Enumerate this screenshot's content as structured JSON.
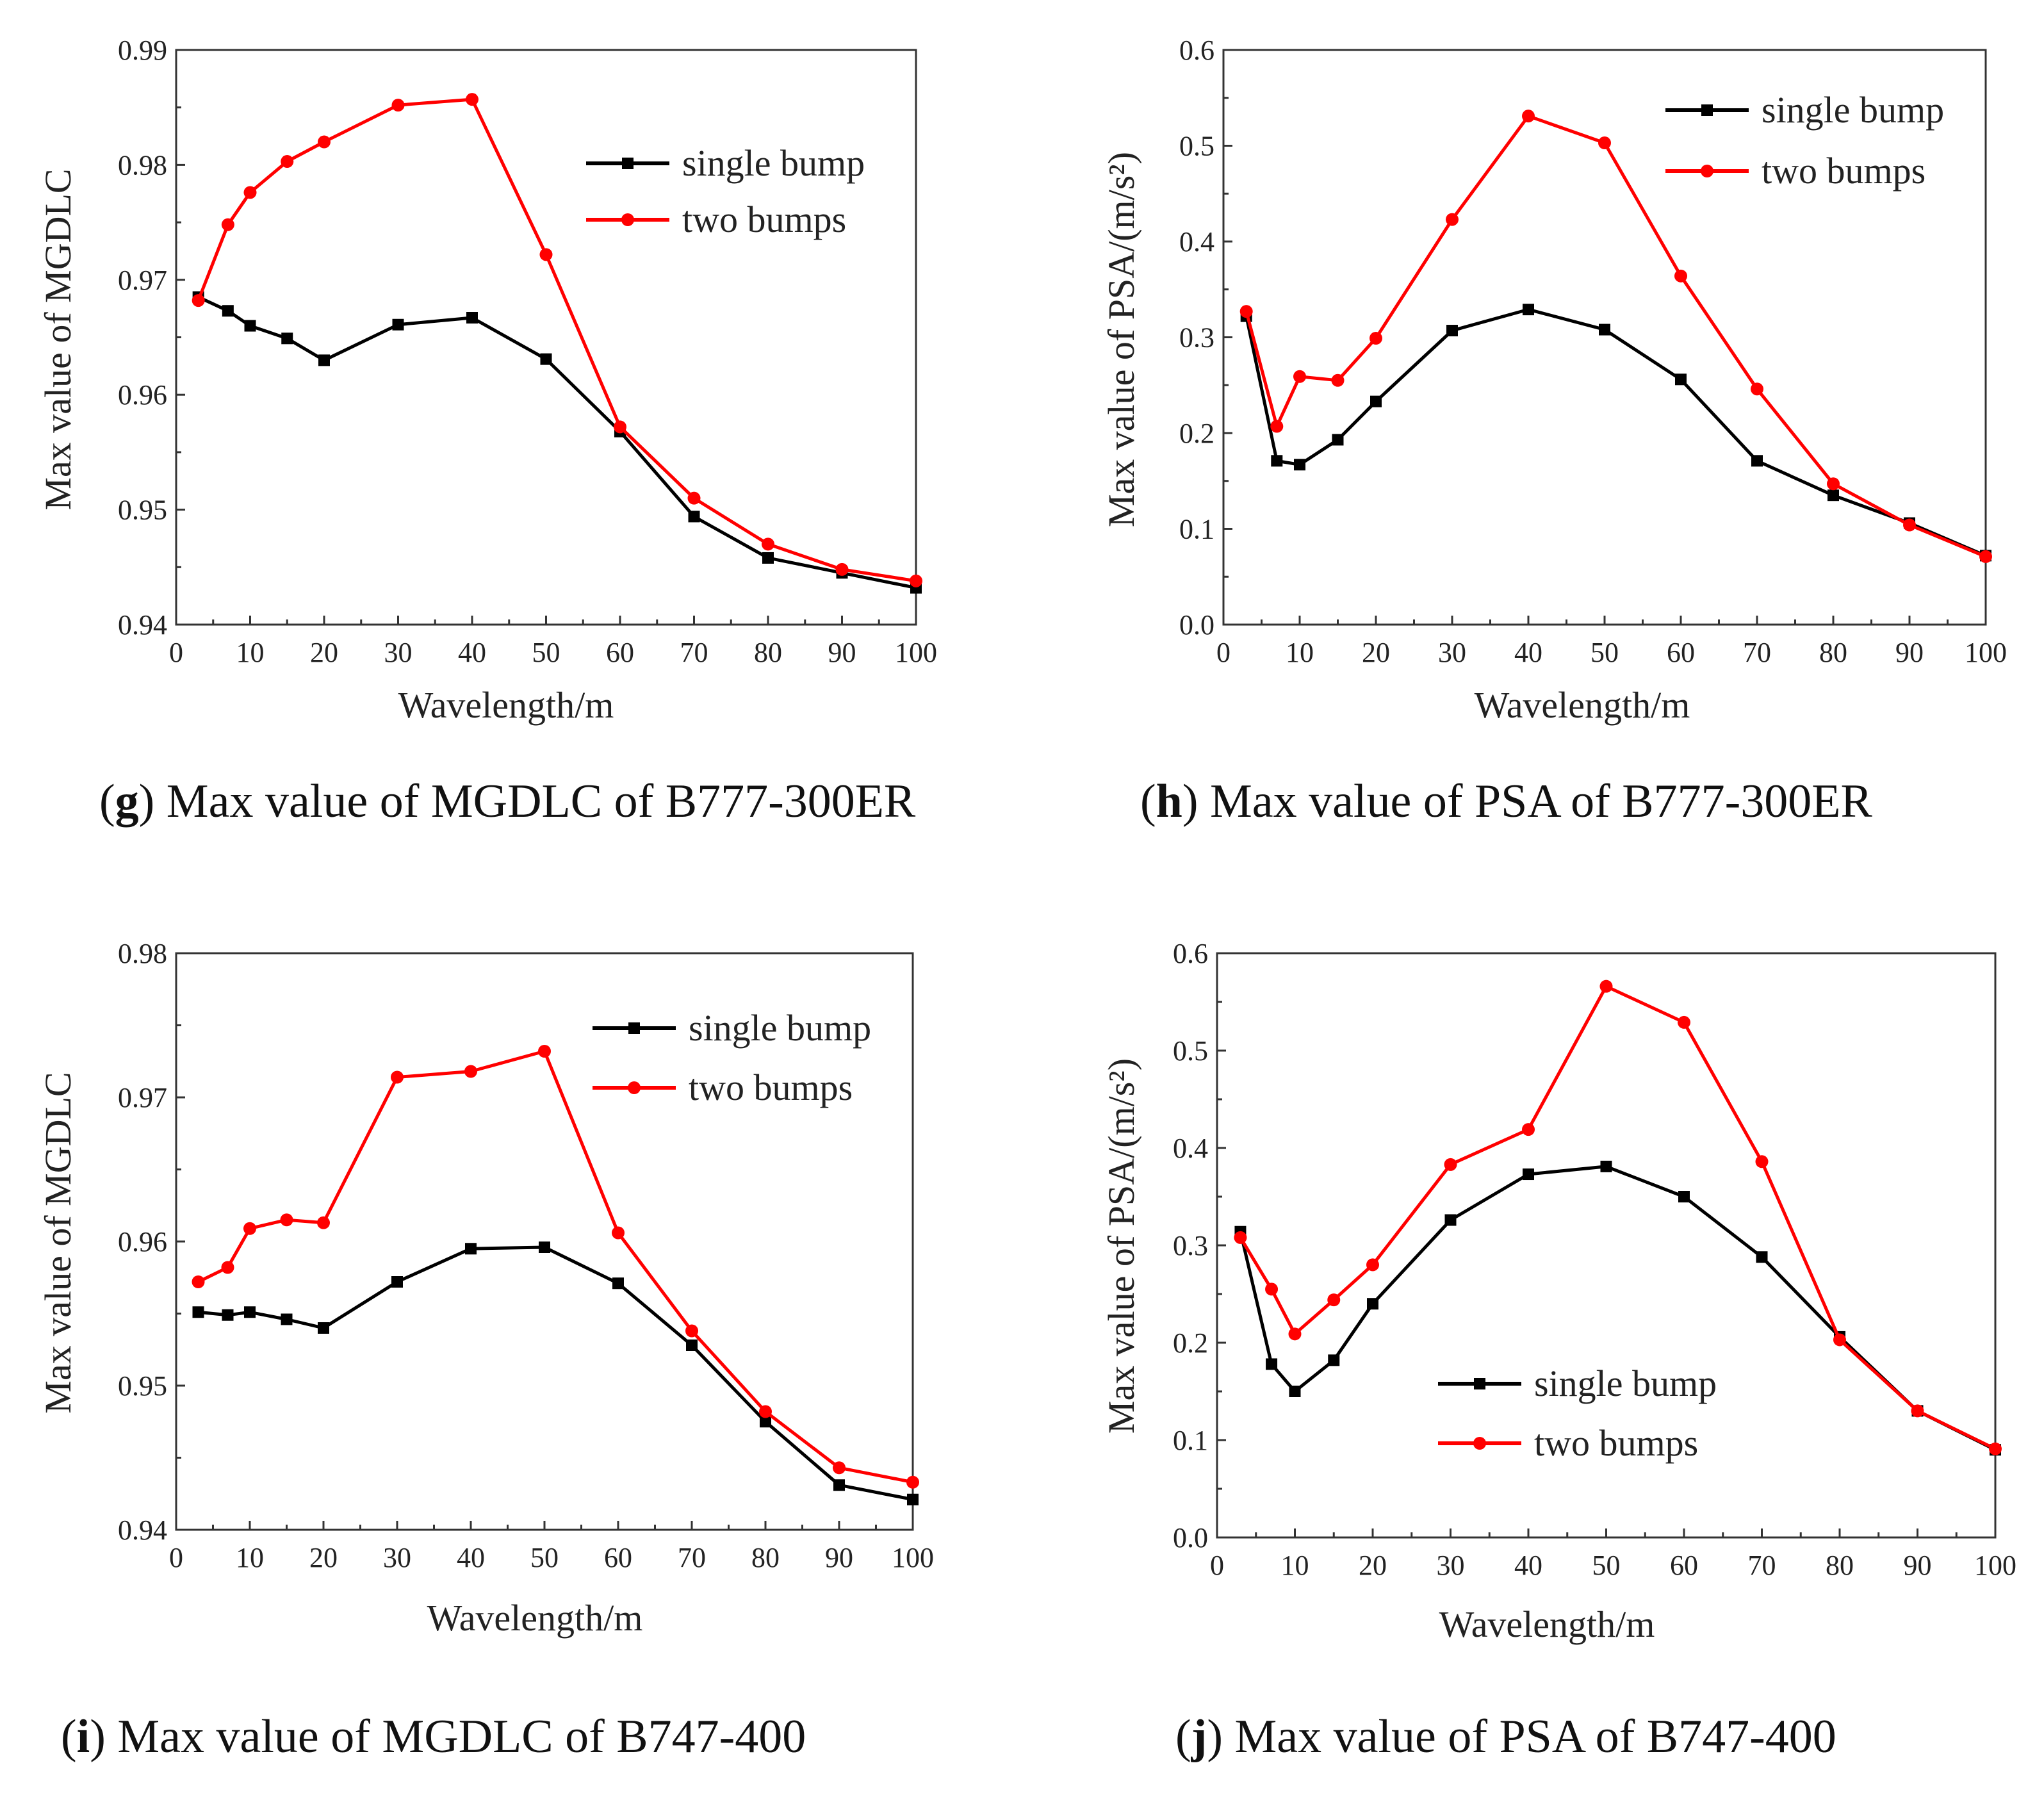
{
  "chart_data": [
    {
      "id": "g",
      "type": "line",
      "title": "Max value of MGDLC of B777-300ER",
      "caption_letter": "g",
      "caption_text": " Max value of MGDLC of B777-300ER",
      "xlabel": "Wavelength/m",
      "ylabel": "Max value of MGDLC",
      "xlim": [
        0,
        100
      ],
      "ylim": [
        0.94,
        0.99
      ],
      "xticks": [
        0,
        10,
        20,
        30,
        40,
        50,
        60,
        70,
        80,
        90,
        100
      ],
      "yticks": [
        0.94,
        0.95,
        0.96,
        0.97,
        0.98,
        0.99
      ],
      "ytick_labels": [
        "0.94",
        "0.95",
        "0.96",
        "0.97",
        "0.98",
        "0.99"
      ],
      "legend_position": "top-right",
      "x": [
        3,
        7,
        10,
        15,
        20,
        30,
        40,
        50,
        60,
        70,
        80,
        90,
        100
      ],
      "series": [
        {
          "name": "single bump",
          "color": "#000000",
          "marker": "square",
          "values": [
            0.9685,
            0.9673,
            0.966,
            0.9649,
            0.963,
            0.9661,
            0.9667,
            0.9631,
            0.9568,
            0.9494,
            0.9458,
            0.9445,
            0.9432
          ]
        },
        {
          "name": "two bumps",
          "color": "#ff0000",
          "marker": "circle",
          "values": [
            0.9682,
            0.9748,
            0.9776,
            0.9803,
            0.982,
            0.9852,
            0.9857,
            0.9722,
            0.9572,
            0.951,
            0.947,
            0.9448,
            0.9438
          ]
        }
      ]
    },
    {
      "id": "h",
      "type": "line",
      "title": "Max value of PSA of B777-300ER",
      "caption_letter": "h",
      "caption_text": " Max value of PSA of B777-300ER",
      "xlabel": "Wavelength/m",
      "ylabel": "Max value of PSA/(m/s²)",
      "xlim": [
        0,
        100
      ],
      "ylim": [
        0.0,
        0.6
      ],
      "xticks": [
        0,
        10,
        20,
        30,
        40,
        50,
        60,
        70,
        80,
        90,
        100
      ],
      "yticks": [
        0.0,
        0.1,
        0.2,
        0.3,
        0.4,
        0.5,
        0.6
      ],
      "ytick_labels": [
        "0.0",
        "0.1",
        "0.2",
        "0.3",
        "0.4",
        "0.5",
        "0.6"
      ],
      "legend_position": "top-right",
      "x": [
        3,
        7,
        10,
        15,
        20,
        30,
        40,
        50,
        60,
        70,
        80,
        90,
        100
      ],
      "series": [
        {
          "name": "single bump",
          "color": "#000000",
          "marker": "square",
          "values": [
            0.322,
            0.171,
            0.167,
            0.193,
            0.233,
            0.307,
            0.329,
            0.308,
            0.256,
            0.171,
            0.135,
            0.106,
            0.072
          ]
        },
        {
          "name": "two bumps",
          "color": "#ff0000",
          "marker": "circle",
          "values": [
            0.327,
            0.207,
            0.259,
            0.255,
            0.299,
            0.423,
            0.531,
            0.503,
            0.364,
            0.246,
            0.147,
            0.104,
            0.071
          ]
        }
      ]
    },
    {
      "id": "i",
      "type": "line",
      "title": "Max value of MGDLC of B747-400",
      "caption_letter": "i",
      "caption_text": " Max value of MGDLC of B747-400",
      "xlabel": "Wavelength/m",
      "ylabel": "Max value of MGDLC",
      "xlim": [
        0,
        100
      ],
      "ylim": [
        0.94,
        0.98
      ],
      "xticks": [
        0,
        10,
        20,
        30,
        40,
        50,
        60,
        70,
        80,
        90,
        100
      ],
      "yticks": [
        0.94,
        0.95,
        0.96,
        0.97,
        0.98
      ],
      "ytick_labels": [
        "0.94",
        "0.95",
        "0.96",
        "0.97",
        "0.98"
      ],
      "legend_position": "top-right",
      "x": [
        3,
        7,
        10,
        15,
        20,
        30,
        40,
        50,
        60,
        70,
        80,
        90,
        100
      ],
      "series": [
        {
          "name": "single bump",
          "color": "#000000",
          "marker": "square",
          "values": [
            0.9551,
            0.9549,
            0.9551,
            0.9546,
            0.954,
            0.9572,
            0.9595,
            0.9596,
            0.9571,
            0.9528,
            0.9475,
            0.9431,
            0.9421
          ]
        },
        {
          "name": "two bumps",
          "color": "#ff0000",
          "marker": "circle",
          "values": [
            0.9572,
            0.9582,
            0.9609,
            0.9615,
            0.9613,
            0.9714,
            0.9718,
            0.9732,
            0.9606,
            0.9538,
            0.9482,
            0.9443,
            0.9433
          ]
        }
      ]
    },
    {
      "id": "j",
      "type": "line",
      "title": "Max value of PSA of B747-400",
      "caption_letter": "j",
      "caption_text": " Max value of PSA of B747-400",
      "xlabel": "Wavelength/m",
      "ylabel": "Max value of PSA/(m/s²)",
      "xlim": [
        0,
        100
      ],
      "ylim": [
        0.0,
        0.6
      ],
      "xticks": [
        0,
        10,
        20,
        30,
        40,
        50,
        60,
        70,
        80,
        90,
        100
      ],
      "yticks": [
        0.0,
        0.1,
        0.2,
        0.3,
        0.4,
        0.5,
        0.6
      ],
      "ytick_labels": [
        "0.0",
        "0.1",
        "0.2",
        "0.3",
        "0.4",
        "0.5",
        "0.6"
      ],
      "legend_position": "center-bottom",
      "x": [
        3,
        7,
        10,
        15,
        20,
        30,
        40,
        50,
        60,
        70,
        80,
        90,
        100
      ],
      "series": [
        {
          "name": "single bump",
          "color": "#000000",
          "marker": "square",
          "values": [
            0.314,
            0.178,
            0.15,
            0.182,
            0.24,
            0.326,
            0.373,
            0.381,
            0.35,
            0.288,
            0.206,
            0.13,
            0.09
          ]
        },
        {
          "name": "two bumps",
          "color": "#ff0000",
          "marker": "circle",
          "values": [
            0.308,
            0.255,
            0.209,
            0.244,
            0.28,
            0.383,
            0.419,
            0.566,
            0.529,
            0.386,
            0.203,
            0.13,
            0.091
          ]
        }
      ]
    }
  ]
}
